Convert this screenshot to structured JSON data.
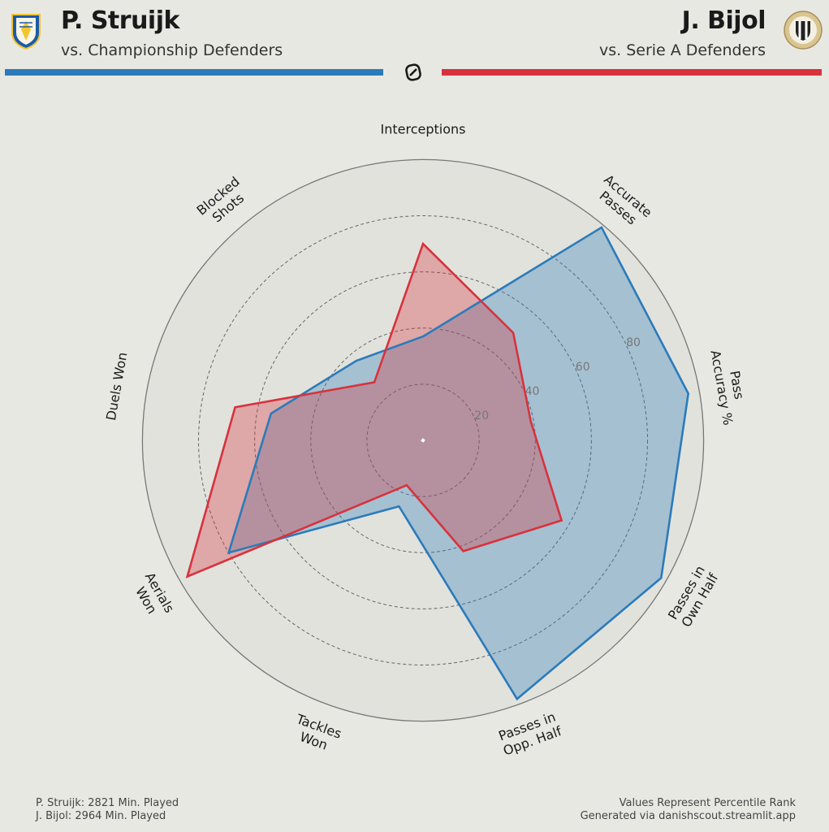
{
  "header": {
    "left": {
      "name": "P. Struijk",
      "subtitle": "vs. Championship Defenders",
      "color": "#2b7bba",
      "crest": "leeds-united-crest-icon"
    },
    "right": {
      "name": "J. Bijol",
      "subtitle": "vs. Serie A Defenders",
      "color": "#d8323c",
      "crest": "udinese-crest-icon"
    },
    "center_logo": "danishscout-logo-icon"
  },
  "footer": {
    "left_lines": [
      "P. Struijk: 2821 Min. Played",
      "J. Bijol: 2964 Min. Played"
    ],
    "right_lines": [
      "Values Represent Percentile Rank",
      "Generated via danishscout.streamlit.app"
    ]
  },
  "chart_data": {
    "type": "radar",
    "axes": [
      [
        "Interceptions"
      ],
      [
        "Accurate",
        "Passes"
      ],
      [
        "Pass",
        "Accuracy %"
      ],
      [
        "Passes in",
        "Own Half"
      ],
      [
        "Passes in",
        "Opp. Half"
      ],
      [
        "Tackles",
        "Won"
      ],
      [
        "Aerials",
        "Won"
      ],
      [
        "Duels Won"
      ],
      [
        "Blocked",
        "Shots"
      ]
    ],
    "rlim": [
      0,
      100
    ],
    "rings": [
      20,
      40,
      60,
      80
    ],
    "ring_labels": [
      "20",
      "40",
      "60",
      "80"
    ],
    "series": [
      {
        "name": "P. Struijk",
        "color": "#2b7bba",
        "fill": "rgba(43,123,186,0.33)",
        "values": [
          37,
          99,
          96,
          98,
          98,
          25,
          80,
          55,
          37
        ]
      },
      {
        "name": "J. Bijol",
        "color": "#d8323c",
        "fill": "rgba(216,50,60,0.33)",
        "values": [
          70,
          50,
          39,
          57,
          42,
          17,
          97,
          68,
          27
        ]
      }
    ]
  }
}
